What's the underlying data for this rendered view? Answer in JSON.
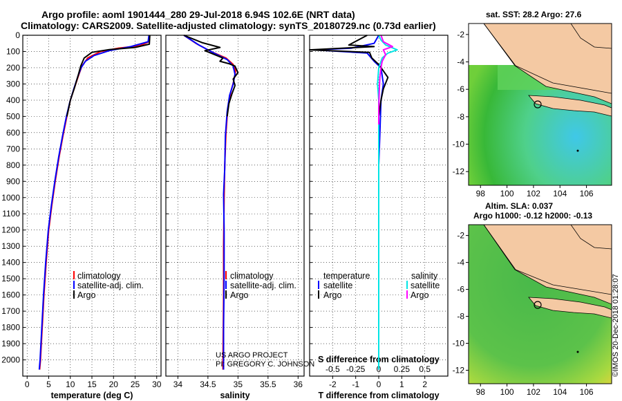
{
  "title_line1": "Argo profile: aoml 1901444_280 29-Jul-2018 6.94S 102.6E (NRT data)",
  "title_line2": "Climatology: CARS2009. Satellite-adjusted climatology: synTS_20180729.nc (0.73d earlier)",
  "credits": {
    "line1": "US ARGO PROJECT",
    "line2": "PI: GREGORY C. JOHNSON"
  },
  "side_text": "©IMOS 20-Dec-2018 01:28:07",
  "colors": {
    "argo": "#000000",
    "climatology": "#ff0000",
    "satellite": "#0000ff",
    "sal_sat": "#00e5e5",
    "sal_argo": "#ff00ff"
  },
  "chart_data": [
    {
      "type": "line",
      "xlabel": "temperature (deg C)",
      "ylabel": "",
      "xlim": [
        -1,
        31
      ],
      "ylim": [
        2100,
        0
      ],
      "xticks": [
        0,
        5,
        10,
        15,
        20,
        25,
        30
      ],
      "yticks": [
        0,
        100,
        200,
        300,
        400,
        500,
        600,
        700,
        800,
        900,
        1000,
        1100,
        1200,
        1300,
        1400,
        1500,
        1600,
        1700,
        1800,
        1900,
        2000
      ],
      "legend": [
        "climatology",
        "satellite-adj. clim.",
        "Argo"
      ],
      "series": [
        {
          "name": "climatology",
          "color": "#ff0000",
          "points": [
            [
              28.3,
              0
            ],
            [
              28.2,
              40
            ],
            [
              26,
              65
            ],
            [
              21,
              80
            ],
            [
              17,
              100
            ],
            [
              14,
              140
            ],
            [
              12.7,
              190
            ],
            [
              12,
              240
            ],
            [
              11,
              320
            ],
            [
              10,
              400
            ],
            [
              9.2,
              500
            ],
            [
              8.3,
              620
            ],
            [
              7.4,
              750
            ],
            [
              6.5,
              900
            ],
            [
              5.7,
              1050
            ],
            [
              5,
              1200
            ],
            [
              4.4,
              1400
            ],
            [
              3.9,
              1600
            ],
            [
              3.5,
              1800
            ],
            [
              3.1,
              2000
            ],
            [
              2.9,
              2060
            ]
          ]
        },
        {
          "name": "satellite-adj. clim.",
          "color": "#0000ff",
          "points": [
            [
              28.2,
              0
            ],
            [
              28,
              40
            ],
            [
              24,
              70
            ],
            [
              19,
              95
            ],
            [
              15.5,
              125
            ],
            [
              13.5,
              160
            ],
            [
              12.5,
              200
            ],
            [
              11.8,
              250
            ],
            [
              10.8,
              330
            ],
            [
              9.9,
              410
            ],
            [
              9.1,
              500
            ],
            [
              8.2,
              620
            ],
            [
              7.3,
              750
            ],
            [
              6.4,
              900
            ],
            [
              5.6,
              1050
            ],
            [
              4.9,
              1200
            ],
            [
              4.3,
              1400
            ],
            [
              3.8,
              1600
            ],
            [
              3.4,
              1800
            ],
            [
              3.0,
              2000
            ],
            [
              2.8,
              2060
            ]
          ]
        },
        {
          "name": "Argo",
          "color": "#000000",
          "points": [
            [
              28.4,
              0
            ],
            [
              28.3,
              55
            ],
            [
              25,
              75
            ],
            [
              19,
              88
            ],
            [
              15,
              105
            ],
            [
              13.2,
              140
            ],
            [
              12.4,
              190
            ],
            [
              11.9,
              240
            ],
            [
              11,
              320
            ],
            [
              10,
              400
            ],
            [
              9.2,
              500
            ]
          ]
        }
      ]
    },
    {
      "type": "line",
      "xlabel": "salinity",
      "ylabel": "",
      "xlim": [
        33.8,
        36.1
      ],
      "ylim": [
        2100,
        0
      ],
      "xticks": [
        34,
        34.5,
        35,
        35.5,
        36
      ],
      "legend": [
        "climatology",
        "satellite-adj. clim.",
        "Argo"
      ],
      "series": [
        {
          "name": "climatology",
          "color": "#ff0000",
          "points": [
            [
              34.1,
              0
            ],
            [
              34.3,
              50
            ],
            [
              34.55,
              100
            ],
            [
              34.8,
              140
            ],
            [
              34.92,
              180
            ],
            [
              34.96,
              220
            ],
            [
              34.93,
              280
            ],
            [
              34.88,
              350
            ],
            [
              34.83,
              450
            ],
            [
              34.8,
              600
            ],
            [
              34.78,
              800
            ],
            [
              34.77,
              1000
            ],
            [
              34.76,
              1300
            ],
            [
              34.76,
              1600
            ],
            [
              34.75,
              2000
            ],
            [
              34.75,
              2060
            ]
          ]
        },
        {
          "name": "satellite-adj. clim.",
          "color": "#0000ff",
          "points": [
            [
              34.1,
              0
            ],
            [
              34.35,
              60
            ],
            [
              34.6,
              110
            ],
            [
              34.82,
              150
            ],
            [
              34.92,
              190
            ],
            [
              34.95,
              240
            ],
            [
              34.92,
              300
            ],
            [
              34.86,
              370
            ],
            [
              34.82,
              470
            ],
            [
              34.79,
              620
            ],
            [
              34.78,
              820
            ],
            [
              34.76,
              980
            ],
            [
              34.77,
              1200
            ],
            [
              34.77,
              1500
            ],
            [
              34.76,
              1800
            ],
            [
              34.76,
              2060
            ]
          ]
        },
        {
          "name": "Argo",
          "color": "#000000",
          "points": [
            [
              34.1,
              0
            ],
            [
              34.4,
              45
            ],
            [
              34.7,
              75
            ],
            [
              34.45,
              95
            ],
            [
              34.55,
              110
            ],
            [
              34.75,
              140
            ],
            [
              34.7,
              160
            ],
            [
              34.85,
              175
            ],
            [
              34.95,
              190
            ],
            [
              35.0,
              230
            ],
            [
              34.92,
              270
            ],
            [
              34.95,
              310
            ],
            [
              34.9,
              360
            ],
            [
              34.85,
              420
            ],
            [
              34.82,
              500
            ]
          ]
        }
      ]
    },
    {
      "type": "line",
      "xlabel": "T difference from climatology",
      "x2label": "S difference from climatology",
      "ylabel": "",
      "xlim": [
        -3,
        3
      ],
      "x2lim": [
        -0.75,
        0.75
      ],
      "ylim": [
        2100,
        0
      ],
      "xticks": [
        -2,
        -1,
        0,
        1,
        2
      ],
      "x2ticks": [
        -0.5,
        -0.25,
        0,
        0.25,
        0.5
      ],
      "legend_headers": [
        "temperature",
        "salinity"
      ],
      "legend_left": [
        "satellite",
        "Argo"
      ],
      "legend_right": [
        "satellite",
        "Argo"
      ],
      "series": [
        {
          "name": "temperature satellite",
          "color": "#0000ff",
          "points": [
            [
              0,
              0
            ],
            [
              -0.2,
              50
            ],
            [
              -1.2,
              80
            ],
            [
              -2.8,
              90
            ],
            [
              -0.5,
              110
            ],
            [
              -0.2,
              160
            ],
            [
              0.1,
              200
            ],
            [
              0.2,
              300
            ],
            [
              0.1,
              400
            ],
            [
              0.05,
              600
            ],
            [
              0,
              800
            ],
            [
              0,
              1200
            ],
            [
              0,
              1600
            ],
            [
              0,
              2060
            ]
          ]
        },
        {
          "name": "temperature Argo",
          "color": "#000000",
          "points": [
            [
              -0.5,
              0
            ],
            [
              -1.3,
              60
            ],
            [
              -0.2,
              70
            ],
            [
              -3.0,
              90
            ],
            [
              -0.4,
              105
            ],
            [
              -0.3,
              140
            ],
            [
              0,
              180
            ],
            [
              0.2,
              220
            ],
            [
              0.4,
              260
            ],
            [
              0.2,
              330
            ],
            [
              0.1,
              400
            ],
            [
              0,
              500
            ]
          ]
        },
        {
          "name": "salinity satellite",
          "color": "#00e5e5",
          "points": [
            [
              0,
              0
            ],
            [
              0.1,
              30
            ],
            [
              0.3,
              60
            ],
            [
              0.8,
              90
            ],
            [
              0.4,
              110
            ],
            [
              0.15,
              140
            ],
            [
              0,
              200
            ],
            [
              -0.05,
              300
            ],
            [
              0,
              400
            ],
            [
              0,
              600
            ],
            [
              0,
              800
            ],
            [
              0,
              1200
            ],
            [
              0,
              1600
            ],
            [
              0,
              2060
            ]
          ]
        },
        {
          "name": "salinity Argo",
          "color": "#ff00ff",
          "points": [
            [
              0.1,
              0
            ],
            [
              0.2,
              40
            ],
            [
              0.6,
              70
            ],
            [
              0.2,
              90
            ],
            [
              0.3,
              120
            ],
            [
              0.15,
              160
            ],
            [
              0.1,
              200
            ],
            [
              0.05,
              260
            ],
            [
              0.02,
              350
            ],
            [
              0,
              450
            ],
            [
              0,
              550
            ]
          ]
        }
      ]
    }
  ],
  "map_top": {
    "title": "sat. SST: 28.2 Argo: 27.6",
    "xticks": [
      98,
      100,
      102,
      104,
      106
    ],
    "yticks": [
      -2,
      -4,
      -6,
      -8,
      -10,
      -12
    ]
  },
  "map_bottom": {
    "title_line1": "Altim. SLA: 0.037",
    "title_line2": "Argo h1000: -0.12 h2000: -0.13",
    "xticks": [
      98,
      100,
      102,
      104,
      106
    ],
    "yticks": [
      -2,
      -4,
      -6,
      -8,
      -10,
      -12
    ]
  }
}
